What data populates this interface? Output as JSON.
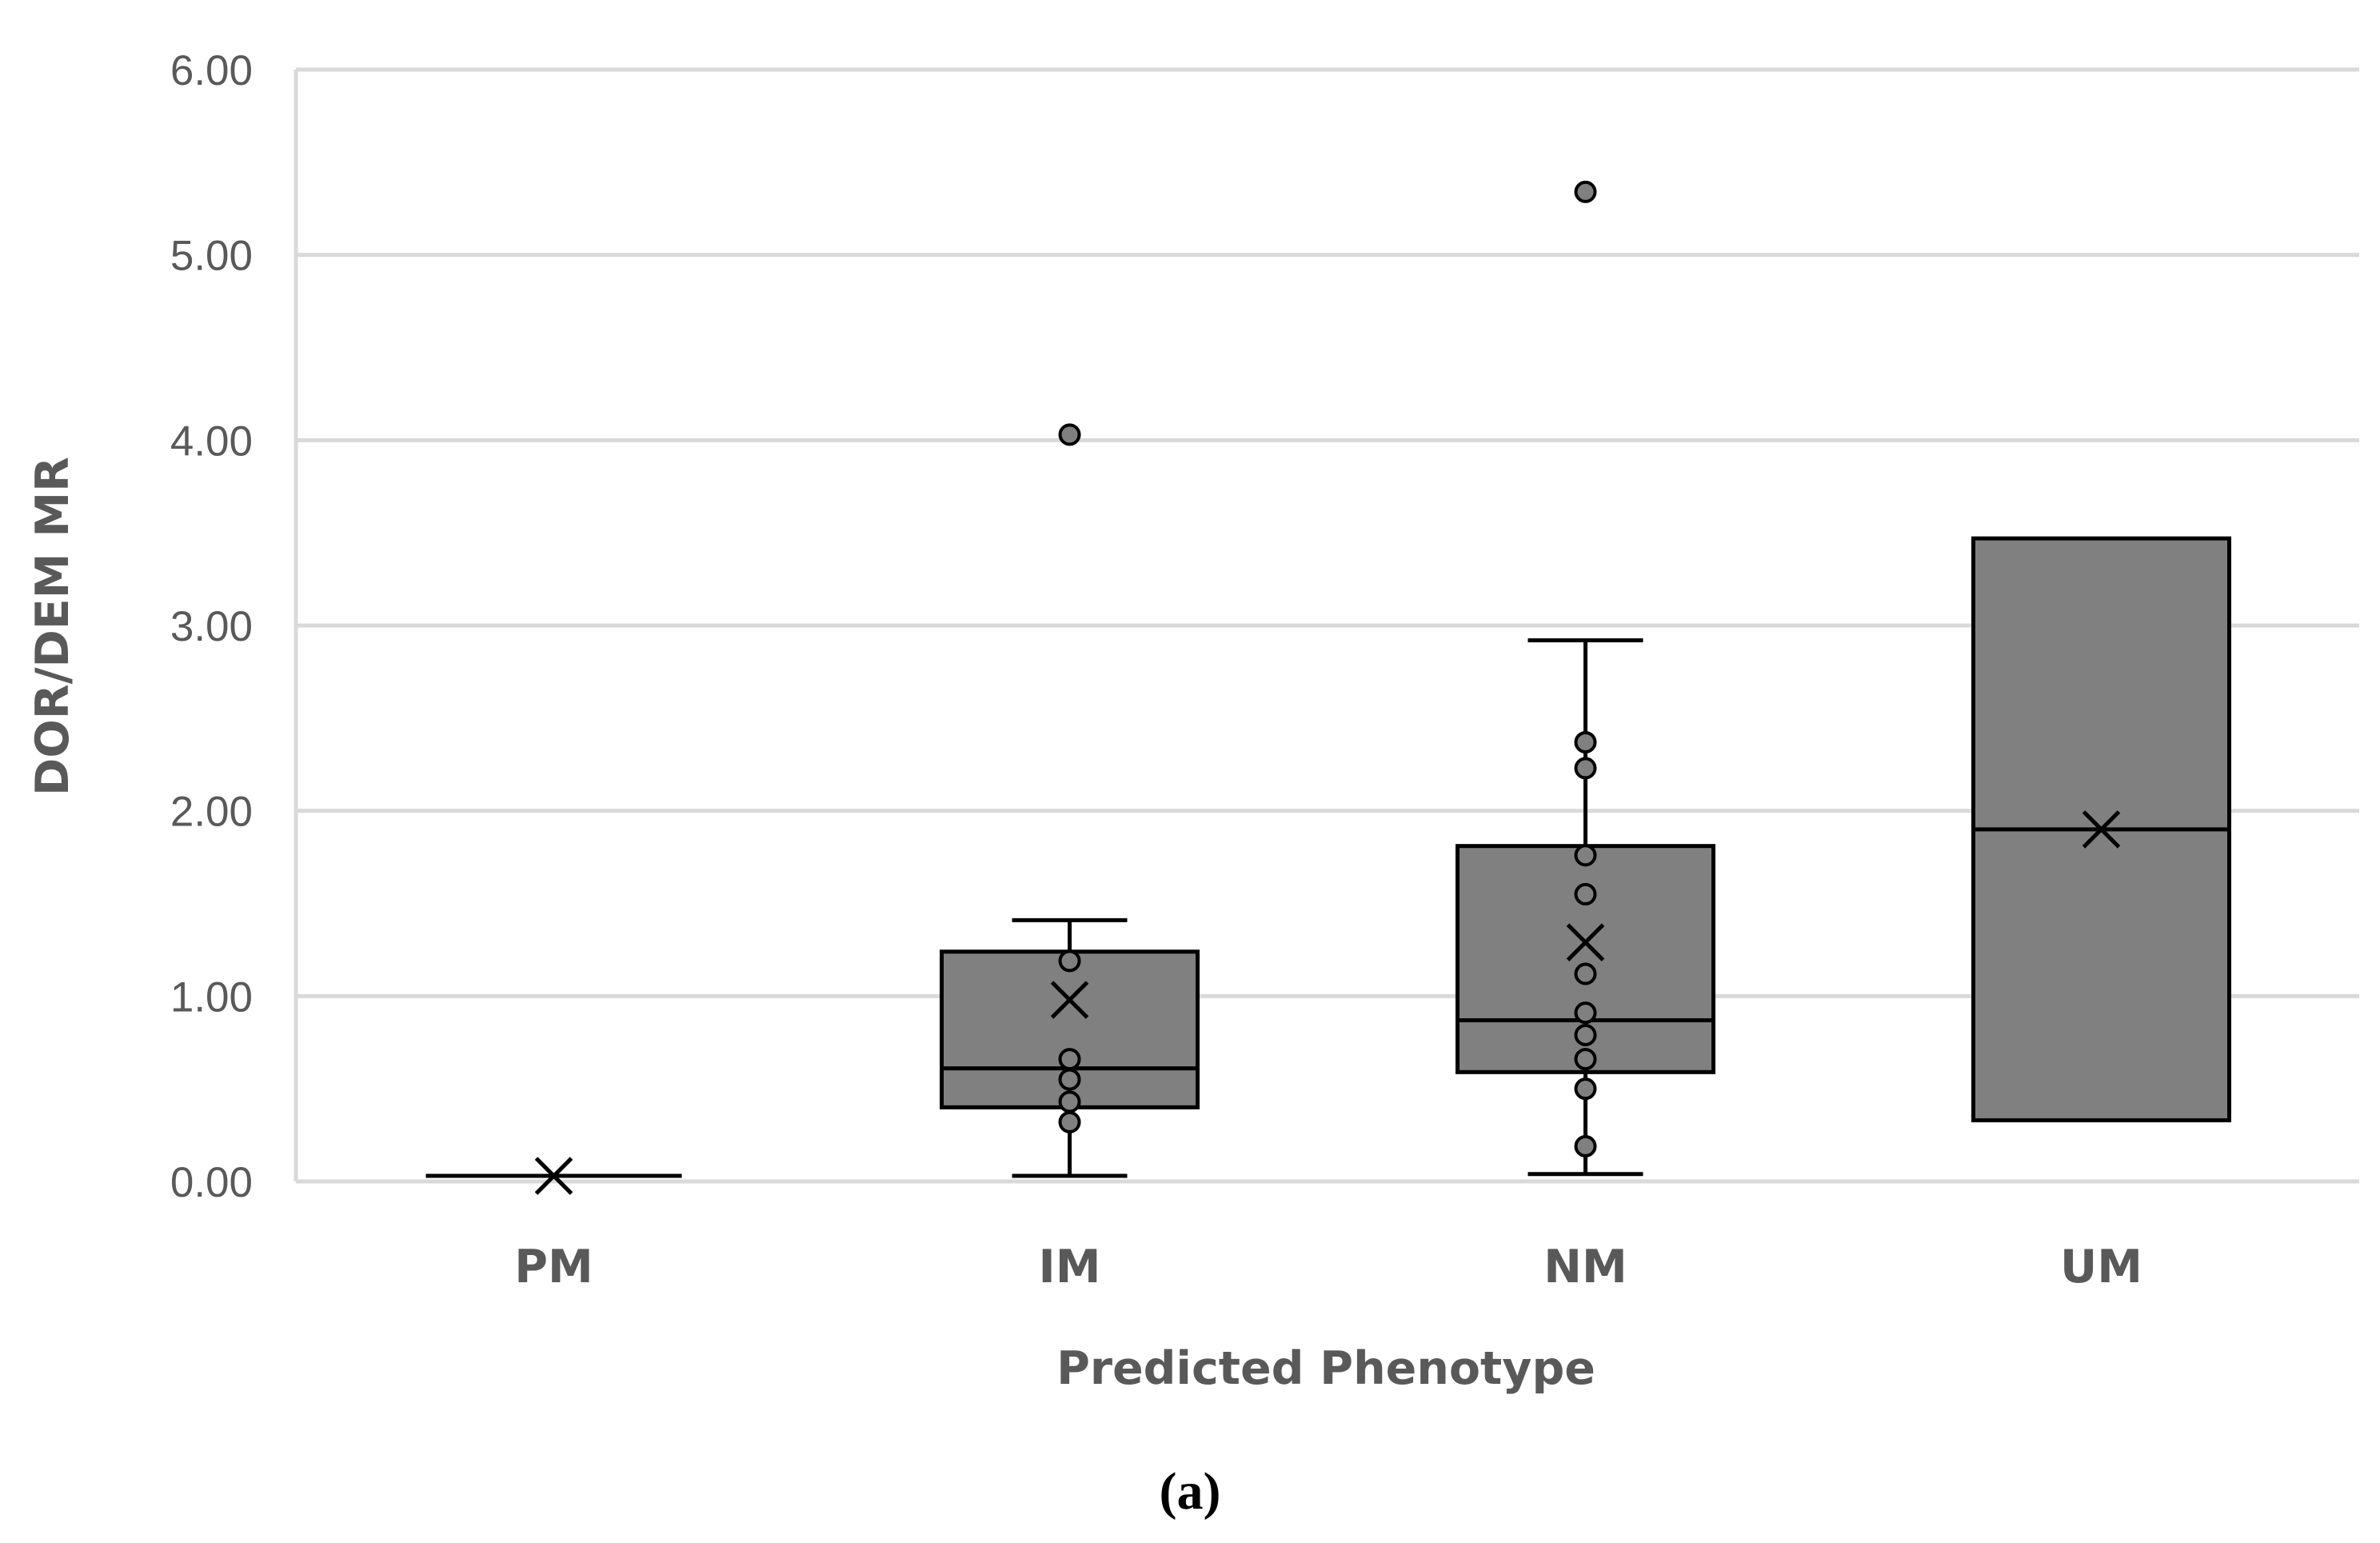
{
  "chart_data": {
    "type": "box",
    "caption": "(a)",
    "xlabel": "Predicted Phenotype",
    "ylabel": "DOR/DEM MR",
    "ylim": [
      0,
      6
    ],
    "yticks": [
      "0.00",
      "1.00",
      "2.00",
      "3.00",
      "4.00",
      "5.00",
      "6.00"
    ],
    "grid": true,
    "colors": {
      "box_fill": "#808080",
      "stroke": "#000000",
      "grid": "#d9d9d9",
      "point_fill": "#808080"
    },
    "categories": [
      "PM",
      "IM",
      "NM",
      "UM"
    ],
    "boxes": [
      {
        "category": "PM",
        "q1": 0.03,
        "median": 0.03,
        "q3": 0.03,
        "whisker_low": 0.03,
        "whisker_high": 0.03,
        "mean": 0.03,
        "points": [],
        "outliers": []
      },
      {
        "category": "IM",
        "q1": 0.4,
        "median": 0.61,
        "q3": 1.24,
        "whisker_low": 0.03,
        "whisker_high": 1.41,
        "mean": 0.98,
        "points": [
          0.32,
          0.43,
          0.55,
          0.66,
          1.19
        ],
        "outliers": [
          4.03
        ]
      },
      {
        "category": "NM",
        "q1": 0.59,
        "median": 0.87,
        "q3": 1.81,
        "whisker_low": 0.04,
        "whisker_high": 2.92,
        "mean": 1.29,
        "points": [
          0.19,
          0.5,
          0.66,
          0.79,
          0.91,
          1.12,
          1.55,
          1.76,
          2.23,
          2.37
        ],
        "outliers": [
          5.34
        ]
      },
      {
        "category": "UM",
        "q1": 0.33,
        "median": 1.9,
        "q3": 3.47,
        "whisker_low": 0.33,
        "whisker_high": 3.47,
        "mean": 1.9,
        "points": [],
        "outliers": []
      }
    ]
  }
}
